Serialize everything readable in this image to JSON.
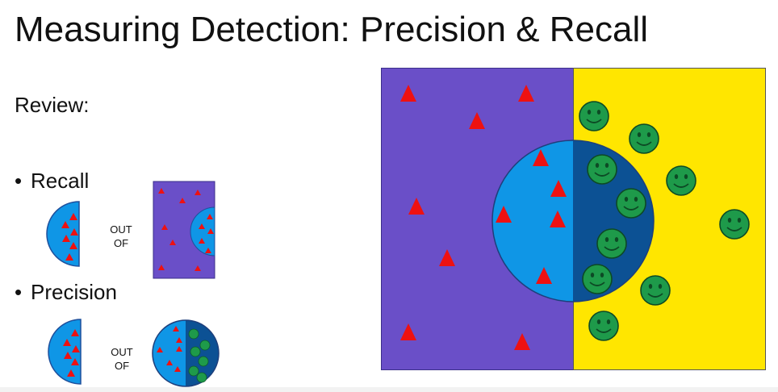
{
  "slide": {
    "title": "Measuring Detection: Precision & Recall",
    "review_label": "Review:",
    "bullets": [
      {
        "label": "Recall",
        "connector": [
          "OUT",
          "OF"
        ]
      },
      {
        "label": "Precision",
        "connector": [
          "OUT",
          "OF"
        ]
      }
    ]
  },
  "colors": {
    "negative_region": "#6a4fc8",
    "positive_region": "#ffe600",
    "selected_negative": "#0f96e6",
    "selected_positive": "#0c5194",
    "triangle": "#ee1111",
    "smiley": "#1e9a4a"
  },
  "icons": [
    "triangle-icon",
    "smiley-face-icon"
  ]
}
